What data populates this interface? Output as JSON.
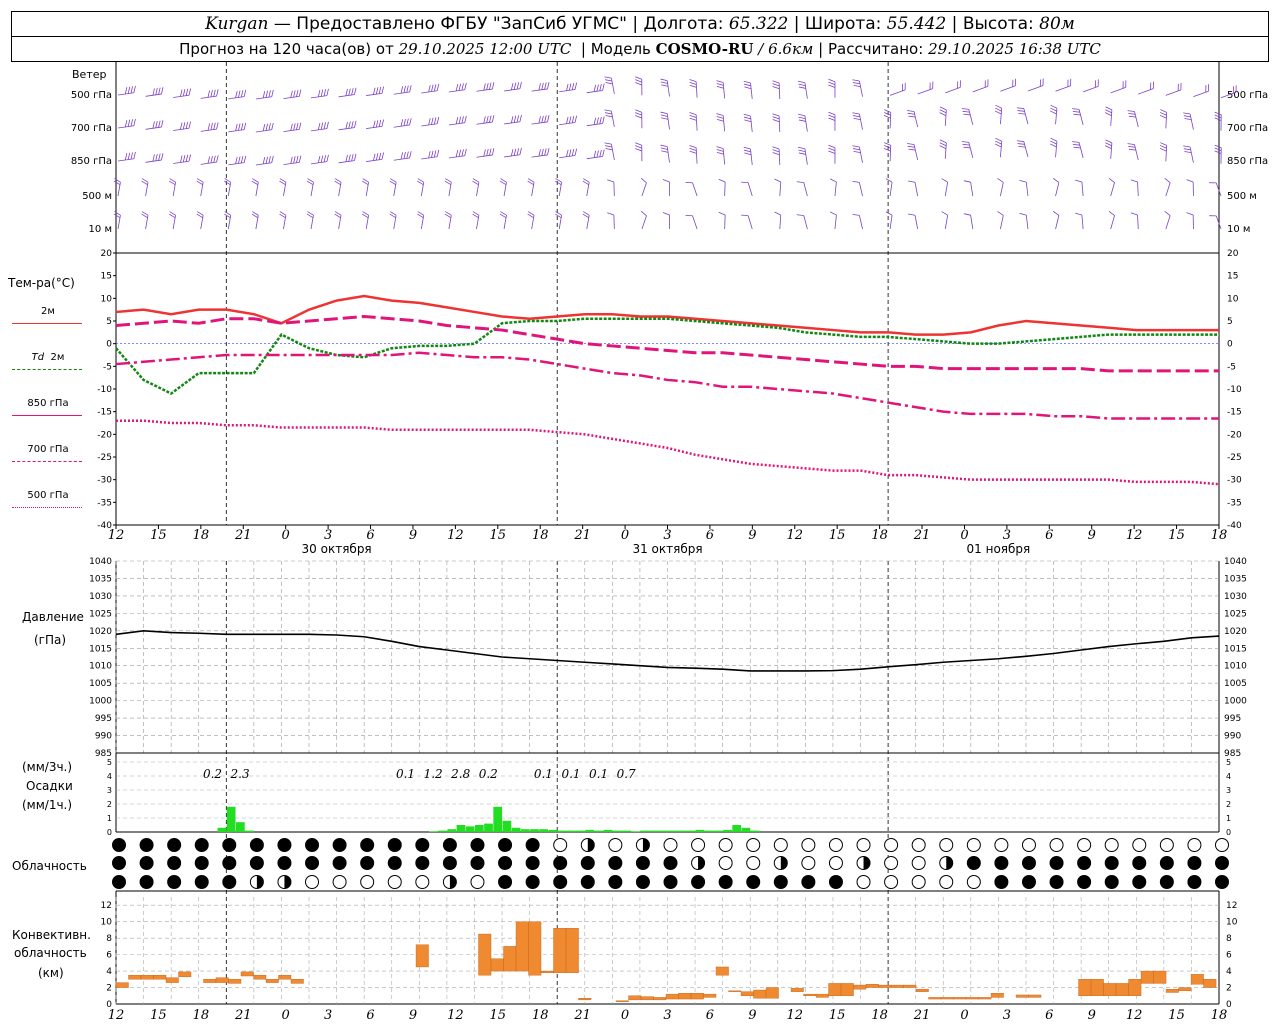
{
  "header": {
    "city": "Kurgan",
    "source": "— Предоставлено ФГБУ \"ЗапСиб УГМС\"",
    "lon_label": "Долгота:",
    "lon": "65.322",
    "lat_label": "Широта:",
    "lat": "55.442",
    "alt_label": "Высота:",
    "alt": "80м",
    "forecast_label": "Прогноз на 120 часа(ов) от",
    "forecast_start": "29.10.2025 12:00 UTC",
    "model_label": "Модель",
    "model": "COSMO-RU",
    "resolution": "/ 6.6км",
    "computed_label": "Рассчитано:",
    "computed": "29.10.2025 16:38 UTC"
  },
  "labels": {
    "wind": "Ветер",
    "temp": "Тем-ра(°С)",
    "t2m": "2м",
    "td": "Td",
    "td2m": "2м",
    "t850": "850 гПа",
    "t700": "700 гПа",
    "t500": "500 гПа",
    "pressure": "Давление",
    "pressure_unit": "(гПа)",
    "precip_3h": "(мм/3ч.)",
    "precip": "Осадки",
    "precip_1h": "(мм/1ч.)",
    "cloud": "Облачность",
    "conv1": "Конвективн.",
    "conv2": "облачность",
    "conv3": "(км)"
  },
  "wind_levels": [
    "500 гПа",
    "700 гПа",
    "850 гПа",
    "500 м",
    "10  м"
  ],
  "time_ticks": [
    "12",
    "15",
    "18",
    "21",
    "0",
    "3",
    "6",
    "9",
    "12",
    "15",
    "18",
    "21",
    "0",
    "3",
    "6",
    "9",
    "12",
    "15",
    "18",
    "21",
    "0",
    "3",
    "6",
    "9",
    "12",
    "15",
    "18"
  ],
  "dates": [
    "30 октября",
    "31 октября",
    "01 ноября"
  ],
  "colors": {
    "t2m": "#ee3333",
    "td": "#118811",
    "t850": "#e0157a",
    "t700": "#e0157a",
    "t500": "#e0157a",
    "pressure": "#000000",
    "precip": "#22dd22",
    "conv": "#f08a30",
    "wind": "#7b3fc7"
  },
  "chart_data": [
    {
      "type": "line",
      "name": "temperature",
      "hours": [
        0,
        3,
        6,
        9,
        12,
        15,
        18,
        21,
        24,
        27,
        30,
        33,
        36,
        39,
        42,
        45,
        48,
        51,
        54,
        57,
        60,
        63,
        66,
        69,
        72,
        75,
        78,
        81,
        84,
        87,
        90,
        93,
        96,
        99,
        102,
        105,
        108,
        111,
        114,
        117,
        120
      ],
      "ylim": [
        -40,
        20
      ],
      "yticks": [
        20,
        15,
        10,
        5,
        0,
        -5,
        -10,
        -15,
        -20,
        -25,
        -30,
        -35,
        -40
      ],
      "series": [
        {
          "name": "2м",
          "values": [
            7,
            7.5,
            6.5,
            7.5,
            7.5,
            6.5,
            4.5,
            7.5,
            9.5,
            10.5,
            9.5,
            9,
            8,
            7,
            6,
            5.5,
            6,
            6.5,
            6.5,
            6,
            6,
            5.5,
            5,
            4.5,
            4,
            3.5,
            3,
            2.5,
            2.5,
            2,
            2,
            2.5,
            4,
            5,
            4.5,
            4,
            3.5,
            3,
            3,
            3,
            3
          ]
        },
        {
          "name": "Td 2м",
          "values": [
            -1,
            -8,
            -11,
            -6.5,
            -6.5,
            -6.5,
            2,
            -1,
            -2.5,
            -3,
            -1,
            -0.5,
            -0.5,
            0,
            4.5,
            5,
            5,
            5.5,
            5.5,
            5.5,
            5.5,
            5,
            4.5,
            4,
            3.5,
            2.5,
            2,
            1.5,
            1.5,
            1,
            0.5,
            0,
            0,
            0.5,
            1,
            1.5,
            2,
            2,
            2,
            2,
            2
          ]
        },
        {
          "name": "850 гПа",
          "values": [
            4,
            4.5,
            5,
            4.5,
            5.5,
            5.5,
            4.5,
            5,
            5.5,
            6,
            5.5,
            5,
            4,
            3.5,
            3,
            2,
            1,
            0,
            -0.5,
            -1,
            -1.5,
            -2,
            -2,
            -2.5,
            -3,
            -3.5,
            -4,
            -4.5,
            -5,
            -5,
            -5.5,
            -5.5,
            -5.5,
            -5.5,
            -5.5,
            -5.5,
            -6,
            -6,
            -6,
            -6,
            -6
          ]
        },
        {
          "name": "700 гПа",
          "values": [
            -4.5,
            -4,
            -3.5,
            -3,
            -2.5,
            -2.5,
            -2.5,
            -2.5,
            -2.5,
            -2.5,
            -2.5,
            -2,
            -2.5,
            -3,
            -3,
            -3.5,
            -4.5,
            -5.5,
            -6.5,
            -7,
            -8,
            -8.5,
            -9.5,
            -9.5,
            -10,
            -10.5,
            -11,
            -12,
            -13,
            -14,
            -15,
            -15.5,
            -15.5,
            -15.5,
            -16,
            -16,
            -16.5,
            -16.5,
            -16.5,
            -16.5,
            -16.5
          ]
        },
        {
          "name": "500 гПа",
          "values": [
            -17,
            -17,
            -17.5,
            -17.5,
            -18,
            -18,
            -18.5,
            -18.5,
            -18.5,
            -18.5,
            -19,
            -19,
            -19,
            -19,
            -19,
            -19,
            -19.5,
            -20,
            -21,
            -22,
            -23,
            -24.5,
            -25.5,
            -26.5,
            -27,
            -27.5,
            -28,
            -28,
            -29,
            -29,
            -29.5,
            -30,
            -30,
            -30,
            -30,
            -30,
            -30,
            -30.5,
            -30.5,
            -30.5,
            -31
          ]
        }
      ]
    },
    {
      "type": "line",
      "name": "pressure",
      "ylim": [
        985,
        1040
      ],
      "yticks": [
        1040,
        1035,
        1030,
        1025,
        1020,
        1015,
        1010,
        1005,
        1000,
        995,
        990,
        985
      ],
      "hours": [
        0,
        3,
        6,
        9,
        12,
        15,
        18,
        21,
        24,
        27,
        30,
        33,
        36,
        39,
        42,
        45,
        48,
        51,
        54,
        57,
        60,
        63,
        66,
        69,
        72,
        75,
        78,
        81,
        84,
        87,
        90,
        93,
        96,
        99,
        102,
        105,
        108,
        111,
        114,
        117,
        120
      ],
      "series": [
        {
          "name": "Давление",
          "values": [
            1019,
            1020,
            1019.5,
            1019.3,
            1019,
            1019,
            1019,
            1019,
            1018.8,
            1018.3,
            1017,
            1015.5,
            1014.5,
            1013.5,
            1012.5,
            1012,
            1011.5,
            1011,
            1010.5,
            1010,
            1009.5,
            1009.3,
            1009,
            1008.5,
            1008.5,
            1008.5,
            1008.6,
            1009,
            1009.7,
            1010.3,
            1011,
            1011.5,
            1012,
            1012.7,
            1013.5,
            1014.5,
            1015.5,
            1016.3,
            1017,
            1018,
            1018.5
          ]
        }
      ]
    },
    {
      "type": "bar",
      "name": "precipitation",
      "ylim": [
        0,
        5
      ],
      "yticks": [
        5,
        4,
        3,
        2,
        1,
        0
      ],
      "hours": [
        11,
        12,
        13,
        14,
        34,
        35,
        36,
        37,
        38,
        39,
        40,
        41,
        42,
        43,
        44,
        45,
        46,
        47,
        48,
        49,
        50,
        51,
        52,
        53,
        54,
        55,
        56,
        57,
        58,
        59,
        60,
        61,
        62,
        63,
        64,
        65,
        66,
        67,
        68,
        69
      ],
      "values": [
        0.3,
        1.8,
        0.7,
        0.1,
        0.05,
        0.1,
        0.2,
        0.5,
        0.4,
        0.5,
        0.6,
        1.8,
        0.8,
        0.3,
        0.2,
        0.2,
        0.2,
        0.15,
        0.1,
        0.1,
        0.1,
        0.15,
        0.1,
        0.15,
        0.1,
        0.1,
        0.05,
        0.1,
        0.1,
        0.1,
        0.1,
        0.1,
        0.1,
        0.15,
        0.1,
        0.1,
        0.15,
        0.5,
        0.3,
        0.1
      ],
      "sums_3h": [
        {
          "hour": 10.5,
          "value": "0.2"
        },
        {
          "hour": 13.5,
          "value": "2.3"
        },
        {
          "hour": 31.5,
          "value": "0.1"
        },
        {
          "hour": 34.5,
          "value": "1.2"
        },
        {
          "hour": 37.5,
          "value": "2.8"
        },
        {
          "hour": 40.5,
          "value": "0.2"
        },
        {
          "hour": 46.5,
          "value": "0.1"
        },
        {
          "hour": 49.5,
          "value": "0.1"
        },
        {
          "hour": 52.5,
          "value": "0.1"
        },
        {
          "hour": 55.5,
          "value": "0.7"
        }
      ]
    },
    {
      "type": "bar",
      "name": "convective_cloud",
      "ylim": [
        0,
        13
      ],
      "yticks": [
        12,
        10,
        8,
        6,
        4,
        2,
        0
      ],
      "bars": [
        {
          "h": 0,
          "base": 2,
          "top": 2.6
        },
        {
          "h": 1,
          "base": 3,
          "top": 3.5
        },
        {
          "h": 2,
          "base": 3,
          "top": 3.5
        },
        {
          "h": 3,
          "base": 3,
          "top": 3.5
        },
        {
          "h": 4,
          "base": 2.6,
          "top": 3.2
        },
        {
          "h": 5,
          "base": 3.3,
          "top": 3.9
        },
        {
          "h": 7,
          "base": 2.6,
          "top": 3
        },
        {
          "h": 8,
          "base": 2.6,
          "top": 3.2
        },
        {
          "h": 9,
          "base": 2.5,
          "top": 3
        },
        {
          "h": 10,
          "base": 3.4,
          "top": 3.9
        },
        {
          "h": 11,
          "base": 3,
          "top": 3.5
        },
        {
          "h": 12,
          "base": 2.6,
          "top": 3
        },
        {
          "h": 13,
          "base": 3,
          "top": 3.5
        },
        {
          "h": 14,
          "base": 2.5,
          "top": 3
        },
        {
          "h": 24,
          "base": 4.5,
          "top": 7.2
        },
        {
          "h": 29,
          "base": 3.5,
          "top": 8.5
        },
        {
          "h": 30,
          "base": 4,
          "top": 5.5
        },
        {
          "h": 31,
          "base": 4,
          "top": 7
        },
        {
          "h": 32,
          "base": 4,
          "top": 10
        },
        {
          "h": 33,
          "base": 3.5,
          "top": 10
        },
        {
          "h": 34,
          "base": 3.8,
          "top": 4
        },
        {
          "h": 35,
          "base": 3.8,
          "top": 9.2
        },
        {
          "h": 36,
          "base": 3.8,
          "top": 9.2
        },
        {
          "h": 37,
          "base": 0.5,
          "top": 0.7
        },
        {
          "h": 40,
          "base": 0.3,
          "top": 0.4
        },
        {
          "h": 41,
          "base": 0.5,
          "top": 1
        },
        {
          "h": 42,
          "base": 0.5,
          "top": 0.9
        },
        {
          "h": 43,
          "base": 0.5,
          "top": 0.8
        },
        {
          "h": 44,
          "base": 0.6,
          "top": 1.2
        },
        {
          "h": 45,
          "base": 0.6,
          "top": 1.3
        },
        {
          "h": 46,
          "base": 0.6,
          "top": 1.3
        },
        {
          "h": 47,
          "base": 0.8,
          "top": 1.2
        },
        {
          "h": 48,
          "base": 3.5,
          "top": 4.5
        },
        {
          "h": 49,
          "base": 1.5,
          "top": 1.6
        },
        {
          "h": 50,
          "base": 1,
          "top": 1.5
        },
        {
          "h": 51,
          "base": 0.7,
          "top": 1.7
        },
        {
          "h": 52,
          "base": 0.7,
          "top": 2
        },
        {
          "h": 54,
          "base": 1.5,
          "top": 1.9
        },
        {
          "h": 55,
          "base": 1,
          "top": 1.2
        },
        {
          "h": 56,
          "base": 0.8,
          "top": 1.2
        },
        {
          "h": 57,
          "base": 1,
          "top": 2.5
        },
        {
          "h": 58,
          "base": 1,
          "top": 2.5
        },
        {
          "h": 59,
          "base": 1.8,
          "top": 2.3
        },
        {
          "h": 60,
          "base": 2,
          "top": 2.4
        },
        {
          "h": 61,
          "base": 2,
          "top": 2.3
        },
        {
          "h": 62,
          "base": 2,
          "top": 2.3
        },
        {
          "h": 63,
          "base": 2,
          "top": 2.3
        },
        {
          "h": 64,
          "base": 1.5,
          "top": 1.8
        },
        {
          "h": 65,
          "base": 0.6,
          "top": 0.8
        },
        {
          "h": 66,
          "base": 0.6,
          "top": 0.8
        },
        {
          "h": 67,
          "base": 0.6,
          "top": 0.8
        },
        {
          "h": 68,
          "base": 0.6,
          "top": 0.8
        },
        {
          "h": 69,
          "base": 0.6,
          "top": 0.8
        },
        {
          "h": 70,
          "base": 0.8,
          "top": 1.3
        },
        {
          "h": 72,
          "base": 0.8,
          "top": 1.1
        },
        {
          "h": 73,
          "base": 0.8,
          "top": 1.1
        },
        {
          "h": 77,
          "base": 1,
          "top": 3
        },
        {
          "h": 78,
          "base": 1,
          "top": 3
        },
        {
          "h": 79,
          "base": 1,
          "top": 2.5
        },
        {
          "h": 80,
          "base": 1,
          "top": 2.5
        },
        {
          "h": 81,
          "base": 1,
          "top": 3
        },
        {
          "h": 82,
          "base": 2.5,
          "top": 4
        },
        {
          "h": 83,
          "base": 2.5,
          "top": 4
        },
        {
          "h": 84,
          "base": 1.4,
          "top": 1.8
        },
        {
          "h": 85,
          "base": 1.6,
          "top": 2
        },
        {
          "h": 86,
          "base": 2.4,
          "top": 3.6
        },
        {
          "h": 87,
          "base": 2,
          "top": 3
        }
      ]
    }
  ]
}
